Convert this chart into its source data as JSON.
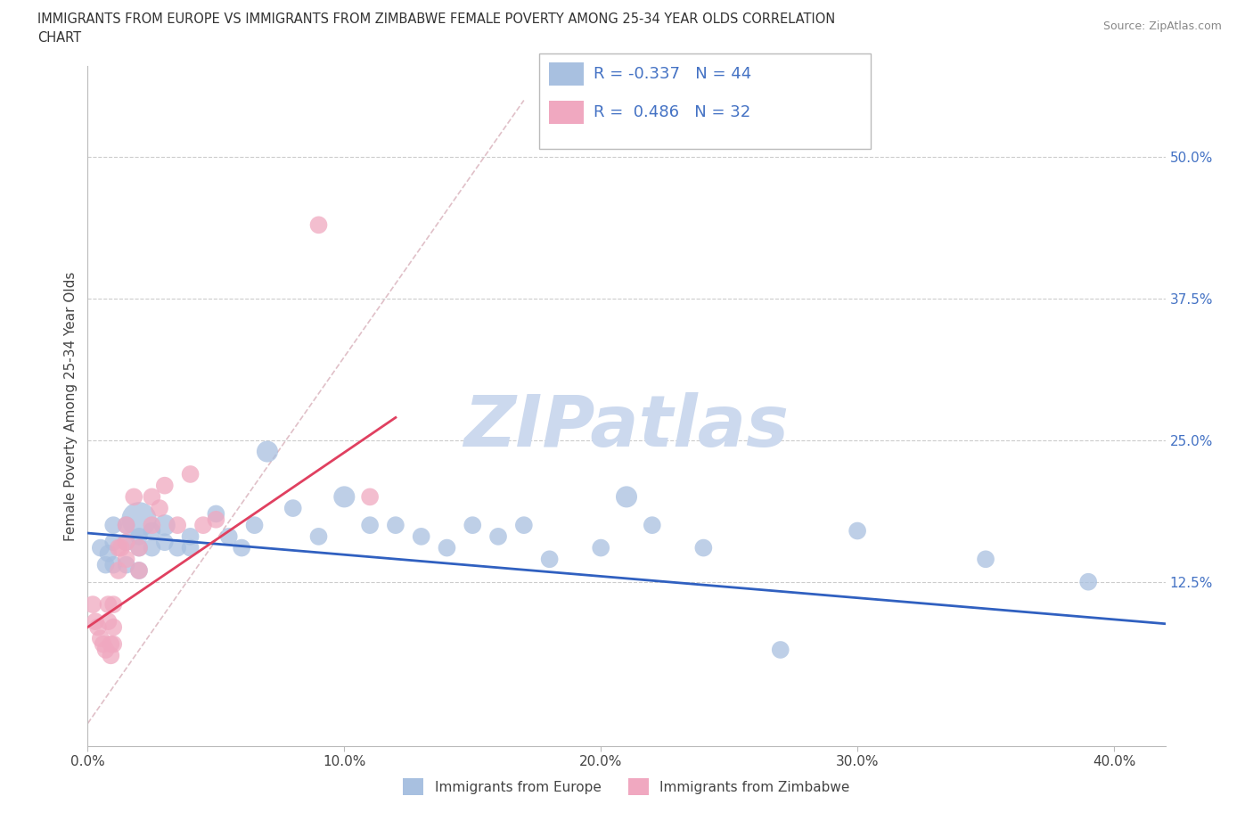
{
  "title_line1": "IMMIGRANTS FROM EUROPE VS IMMIGRANTS FROM ZIMBABWE FEMALE POVERTY AMONG 25-34 YEAR OLDS CORRELATION",
  "title_line2": "CHART",
  "source": "Source: ZipAtlas.com",
  "ylabel": "Female Poverty Among 25-34 Year Olds",
  "xlim": [
    0.0,
    0.42
  ],
  "ylim": [
    -0.02,
    0.58
  ],
  "xticks": [
    0.0,
    0.1,
    0.2,
    0.3,
    0.4
  ],
  "xticklabels": [
    "0.0%",
    "10.0%",
    "20.0%",
    "30.0%",
    "40.0%"
  ],
  "ytick_positions": [
    0.0,
    0.125,
    0.25,
    0.375,
    0.5
  ],
  "ytick_labels_right": [
    "",
    "12.5%",
    "25.0%",
    "37.5%",
    "50.0%"
  ],
  "grid_color": "#cccccc",
  "background_color": "#ffffff",
  "watermark": "ZIPatlas",
  "watermark_color": "#ccd9ee",
  "legend_R_europe": "-0.337",
  "legend_N_europe": "44",
  "legend_R_zimbabwe": "0.486",
  "legend_N_zimbabwe": "32",
  "europe_color": "#a8c0e0",
  "zimbabwe_color": "#f0a8c0",
  "europe_line_color": "#3060c0",
  "zimbabwe_line_color": "#e04060",
  "diagonal_color": "#e0c0c8",
  "europe_x": [
    0.005,
    0.007,
    0.008,
    0.01,
    0.01,
    0.01,
    0.015,
    0.015,
    0.015,
    0.02,
    0.02,
    0.02,
    0.02,
    0.025,
    0.025,
    0.03,
    0.03,
    0.035,
    0.04,
    0.04,
    0.05,
    0.055,
    0.06,
    0.065,
    0.07,
    0.08,
    0.09,
    0.1,
    0.11,
    0.12,
    0.13,
    0.14,
    0.15,
    0.16,
    0.17,
    0.18,
    0.2,
    0.21,
    0.22,
    0.24,
    0.27,
    0.3,
    0.35,
    0.39
  ],
  "europe_y": [
    0.155,
    0.14,
    0.15,
    0.175,
    0.16,
    0.14,
    0.175,
    0.16,
    0.14,
    0.18,
    0.165,
    0.155,
    0.135,
    0.17,
    0.155,
    0.175,
    0.16,
    0.155,
    0.165,
    0.155,
    0.185,
    0.165,
    0.155,
    0.175,
    0.24,
    0.19,
    0.165,
    0.2,
    0.175,
    0.175,
    0.165,
    0.155,
    0.175,
    0.165,
    0.175,
    0.145,
    0.155,
    0.2,
    0.175,
    0.155,
    0.065,
    0.17,
    0.145,
    0.125
  ],
  "europe_sizes": [
    200,
    200,
    200,
    200,
    200,
    200,
    200,
    200,
    200,
    800,
    200,
    200,
    200,
    200,
    200,
    300,
    200,
    200,
    200,
    200,
    200,
    200,
    200,
    200,
    300,
    200,
    200,
    300,
    200,
    200,
    200,
    200,
    200,
    200,
    200,
    200,
    200,
    300,
    200,
    200,
    200,
    200,
    200,
    200
  ],
  "zimbabwe_x": [
    0.002,
    0.003,
    0.004,
    0.005,
    0.006,
    0.007,
    0.008,
    0.008,
    0.009,
    0.009,
    0.01,
    0.01,
    0.01,
    0.012,
    0.012,
    0.013,
    0.015,
    0.015,
    0.015,
    0.018,
    0.02,
    0.02,
    0.025,
    0.025,
    0.028,
    0.03,
    0.035,
    0.04,
    0.045,
    0.05,
    0.09,
    0.11
  ],
  "zimbabwe_y": [
    0.105,
    0.09,
    0.085,
    0.075,
    0.07,
    0.065,
    0.105,
    0.09,
    0.07,
    0.06,
    0.105,
    0.085,
    0.07,
    0.155,
    0.135,
    0.155,
    0.175,
    0.16,
    0.145,
    0.2,
    0.155,
    0.135,
    0.2,
    0.175,
    0.19,
    0.21,
    0.175,
    0.22,
    0.175,
    0.18,
    0.44,
    0.2
  ],
  "zimbabwe_sizes": [
    200,
    200,
    200,
    200,
    200,
    200,
    200,
    200,
    200,
    200,
    200,
    200,
    200,
    200,
    200,
    200,
    200,
    200,
    200,
    200,
    200,
    200,
    200,
    200,
    200,
    200,
    200,
    200,
    200,
    200,
    200,
    200
  ],
  "europe_trend_x": [
    0.0,
    0.42
  ],
  "europe_trend_y": [
    0.168,
    0.088
  ],
  "zimbabwe_trend_x": [
    0.0,
    0.12
  ],
  "zimbabwe_trend_y": [
    0.085,
    0.27
  ]
}
